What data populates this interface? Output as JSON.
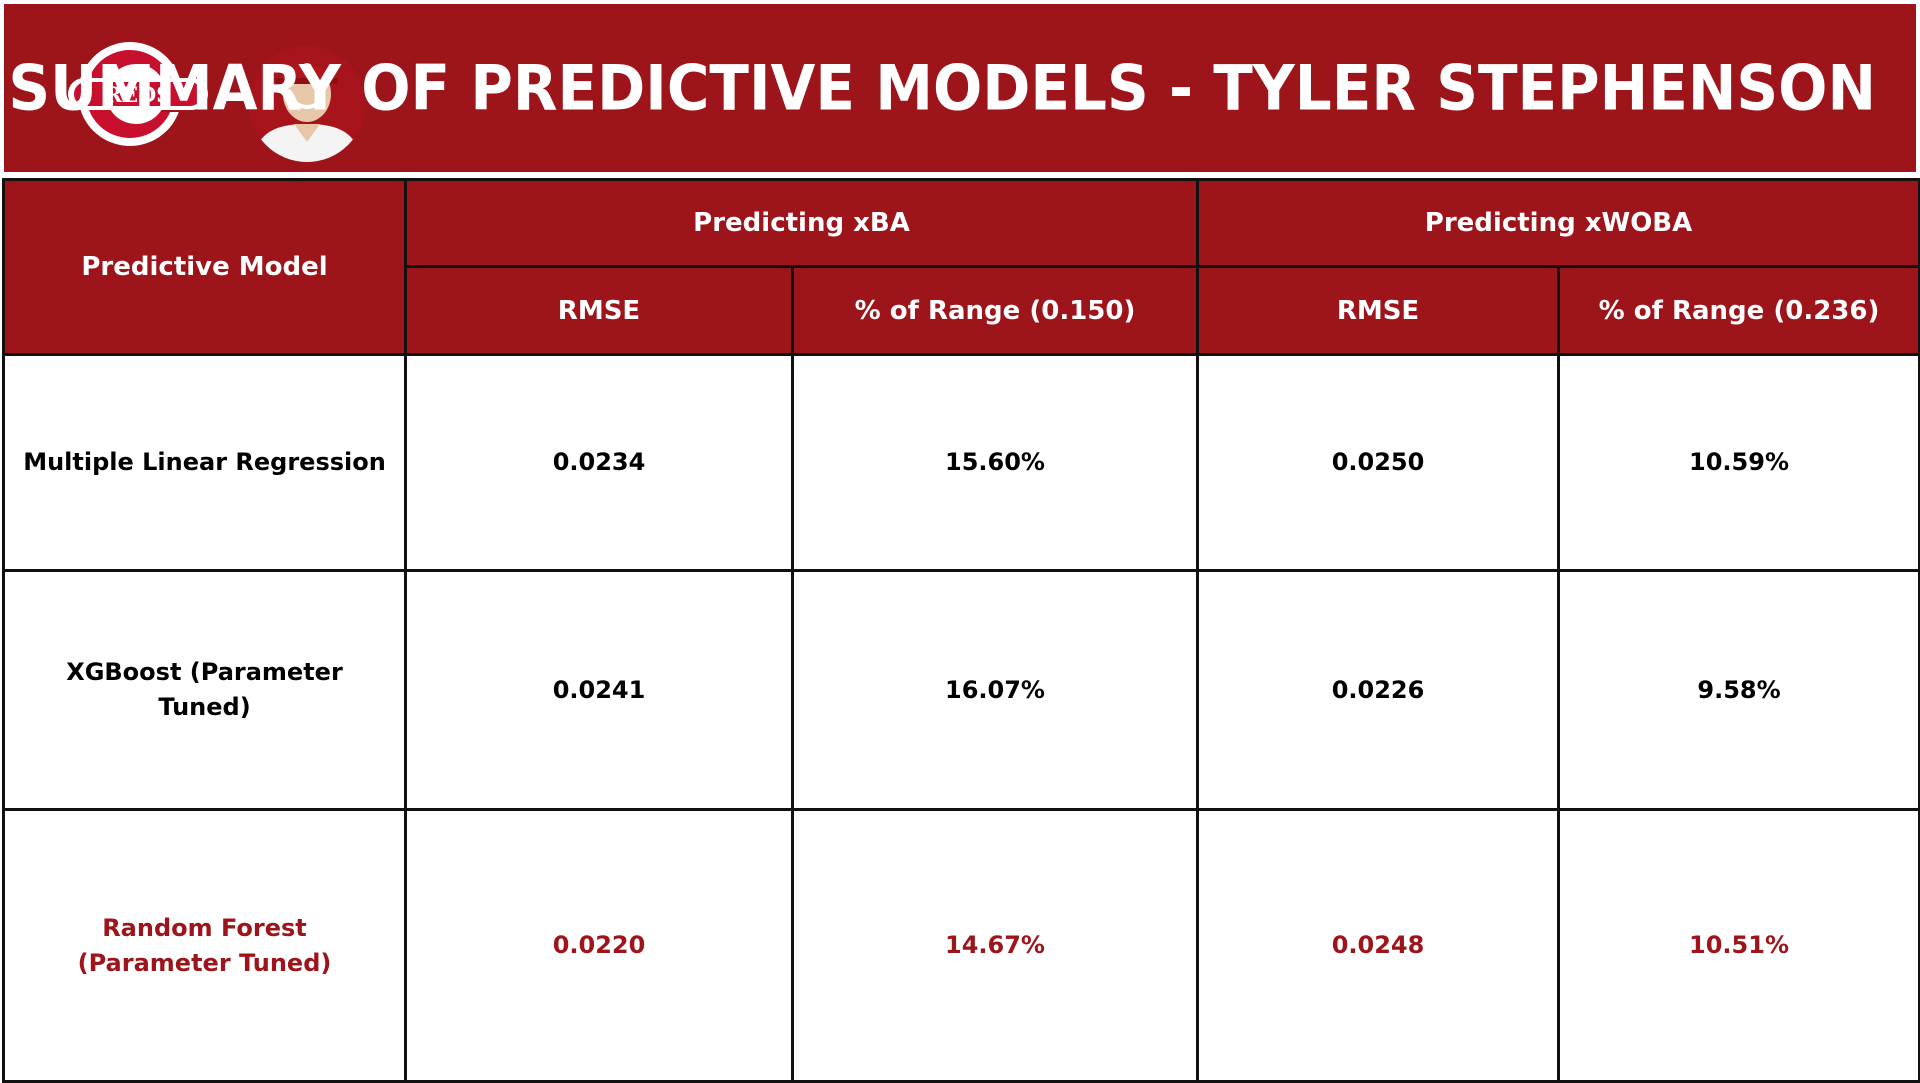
{
  "header": {
    "title": "SUMMARY OF PREDICTIVE MODELS - TYLER STEPHENSON",
    "logo_text": "REDS",
    "logo_icon": "reds-logo-icon",
    "player_icon": "player-headshot-icon",
    "colors": {
      "brand_red": "#9e141b",
      "text_white": "#ffffff",
      "border": "#111111",
      "highlight_text": "#9e141b"
    }
  },
  "table": {
    "row_header_label": "Predictive Model",
    "groups": [
      {
        "label": "Predicting xBA",
        "rmse_label": "RMSE",
        "range_label": "% of Range (0.150)"
      },
      {
        "label": "Predicting xWOBA",
        "rmse_label": "RMSE",
        "range_label": "% of Range (0.236)"
      }
    ],
    "rows": [
      {
        "model": "Multiple Linear Regression",
        "xba_rmse": "0.0234",
        "xba_pct": "15.60%",
        "xwoba_rmse": "0.0250",
        "xwoba_pct": "10.59%"
      },
      {
        "model": "XGBoost (Parameter Tuned)",
        "xba_rmse": "0.0241",
        "xba_pct": "16.07%",
        "xwoba_rmse": "0.0226",
        "xwoba_pct": "9.58%"
      },
      {
        "model": "Random Forest (Parameter Tuned)",
        "xba_rmse": "0.0220",
        "xba_pct": "14.67%",
        "xwoba_rmse": "0.0248",
        "xwoba_pct": "10.51%"
      }
    ]
  }
}
